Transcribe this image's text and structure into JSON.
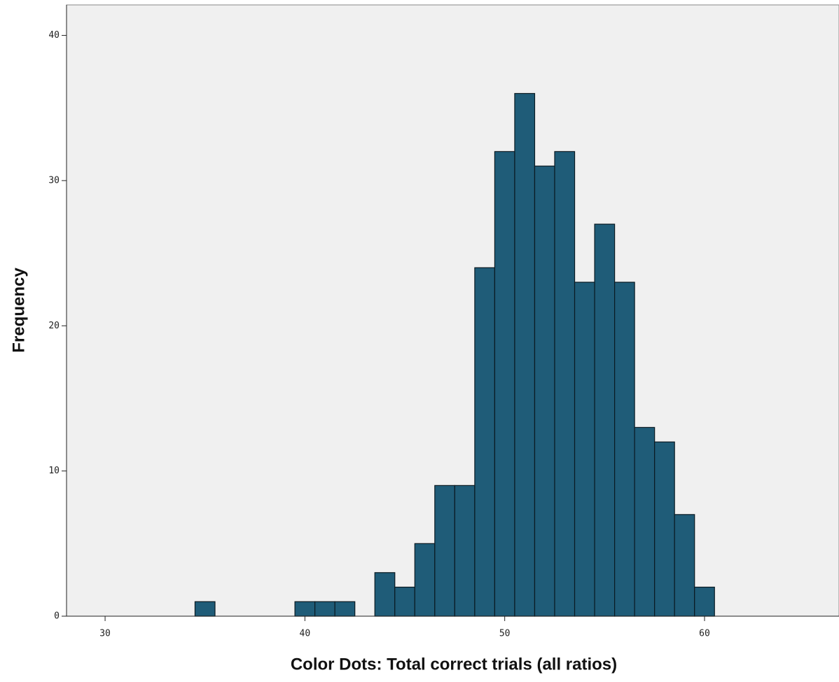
{
  "chart_data": {
    "type": "histogram",
    "xlabel": "Color Dots:  Total correct trials (all ratios)",
    "ylabel": "Frequency",
    "bins": [
      34.5,
      35.5,
      36.5,
      37.5,
      38.5,
      39.5,
      40.5,
      41.5,
      42.5,
      43.5,
      44.5,
      45.5,
      46.5,
      47.5,
      48.5,
      49.5,
      50.5,
      51.5,
      52.5,
      53.5,
      54.5,
      55.5,
      56.5,
      57.5,
      58.5,
      59.5,
      60.5
    ],
    "values": [
      1,
      0,
      0,
      0,
      0,
      1,
      1,
      1,
      0,
      3,
      2,
      5,
      9,
      9,
      24,
      32,
      36,
      31,
      32,
      23,
      27,
      23,
      13,
      12,
      7,
      2
    ],
    "color": "#1f5c78",
    "xlim": [
      28.07,
      66.73
    ],
    "ylim": [
      0,
      42.1
    ],
    "xticks": [
      30,
      40,
      50,
      60
    ],
    "yticks": [
      0,
      10,
      20,
      30,
      40
    ]
  }
}
